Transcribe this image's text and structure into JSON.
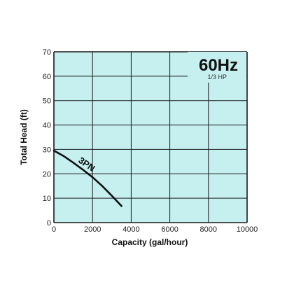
{
  "chart_data": {
    "type": "line",
    "xlabel": "Capacity (gal/hour)",
    "ylabel": "Total Head (ft)",
    "xlim": [
      0,
      10000
    ],
    "ylim": [
      0,
      70
    ],
    "xticks": [
      "0",
      "2000",
      "4000",
      "6000",
      "8000",
      "10000"
    ],
    "yticks": [
      "0",
      "10",
      "20",
      "30",
      "40",
      "50",
      "60",
      "70"
    ],
    "grid": true,
    "annotations": {
      "frequency": "60Hz",
      "power": "1/3 HP"
    },
    "series": [
      {
        "name": "3PN",
        "x": [
          0,
          500,
          1000,
          1500,
          2000,
          2500,
          3000,
          3500
        ],
        "y": [
          29.5,
          27.3,
          24.6,
          21.7,
          18.6,
          15.0,
          11.0,
          6.8
        ]
      }
    ],
    "colors": {
      "plot_bg": "#c6f0f0",
      "grid": "#1a1a1a",
      "line": "#111111"
    }
  }
}
